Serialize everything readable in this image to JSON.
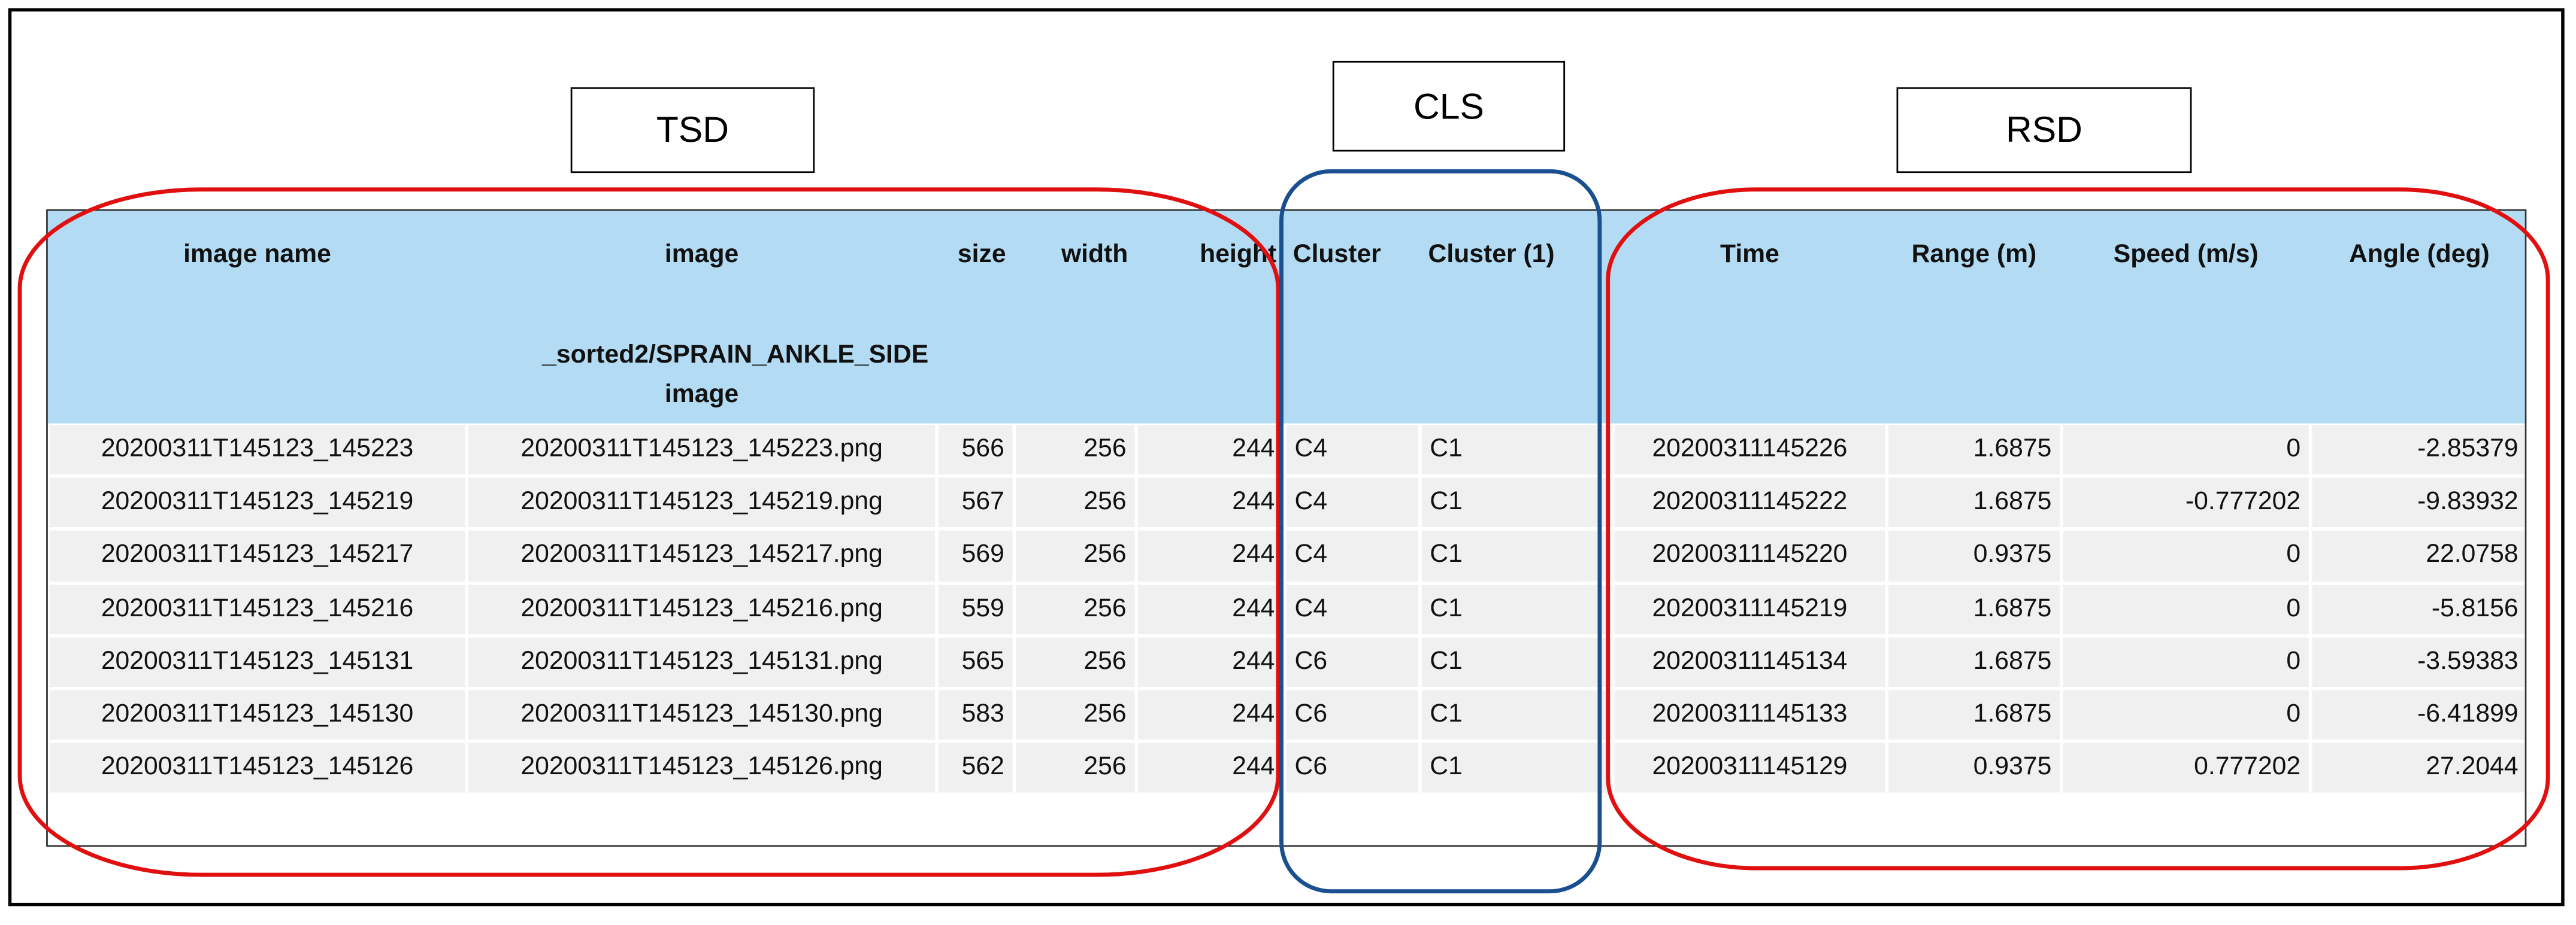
{
  "labels": {
    "tsd": "TSD",
    "cls": "CLS",
    "rsd": "RSD"
  },
  "table": {
    "headers": [
      "image name",
      "image",
      "size",
      "width",
      "height",
      "Cluster",
      "Cluster (1)",
      "Time",
      "Range (m)",
      "Speed (m/s)",
      "Angle (deg)"
    ],
    "header_extra": {
      "path": "sorted2/SPRAIN_ANKLE_SIDE_",
      "type": "image"
    },
    "rows": [
      [
        "20200311T145123_145223",
        "20200311T145123_145223.png",
        "566",
        "256",
        "244",
        "C4",
        "C1",
        "20200311145226",
        "1.6875",
        "0",
        "-2.85379"
      ],
      [
        "20200311T145123_145219",
        "20200311T145123_145219.png",
        "567",
        "256",
        "244",
        "C4",
        "C1",
        "20200311145222",
        "1.6875",
        "-0.777202",
        "-9.83932"
      ],
      [
        "20200311T145123_145217",
        "20200311T145123_145217.png",
        "569",
        "256",
        "244",
        "C4",
        "C1",
        "20200311145220",
        "0.9375",
        "0",
        "22.0758"
      ],
      [
        "20200311T145123_145216",
        "20200311T145123_145216.png",
        "559",
        "256",
        "244",
        "C4",
        "C1",
        "20200311145219",
        "1.6875",
        "0",
        "-5.8156"
      ],
      [
        "20200311T145123_145131",
        "20200311T145123_145131.png",
        "565",
        "256",
        "244",
        "C6",
        "C1",
        "20200311145134",
        "1.6875",
        "0",
        "-3.59383"
      ],
      [
        "20200311T145123_145130",
        "20200311T145123_145130.png",
        "583",
        "256",
        "244",
        "C6",
        "C1",
        "20200311145133",
        "1.6875",
        "0",
        "-6.41899"
      ],
      [
        "20200311T145123_145126",
        "20200311T145123_145126.png",
        "562",
        "256",
        "244",
        "C6",
        "C1",
        "20200311145129",
        "0.9375",
        "0.777202",
        "27.2044"
      ]
    ]
  }
}
